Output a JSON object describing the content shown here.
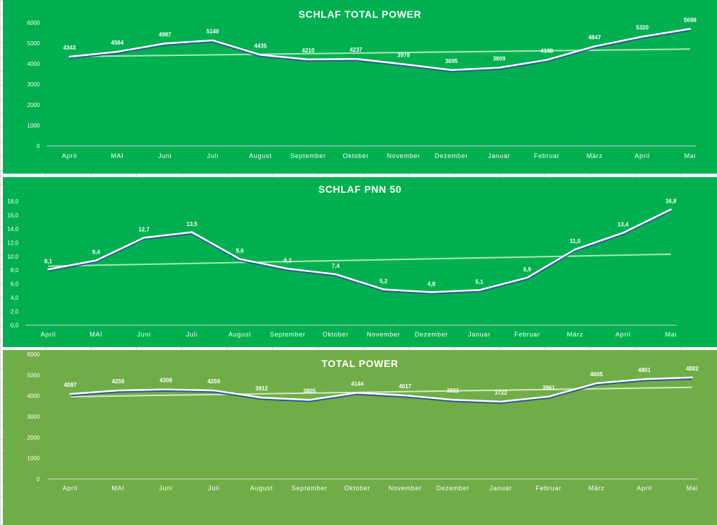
{
  "colors": {
    "chart1_bg": "#00b050",
    "chart2_bg": "#00b050",
    "chart3_bg": "#70ad47",
    "line": "#ffffff",
    "line_shadow": "#2f5597",
    "trend1": "#a9e8b8",
    "trend2": "#a9e8b8",
    "trend3": "#d6e9c6",
    "baseline": "#d9d9d9"
  },
  "chart_data": [
    {
      "type": "line",
      "title": "SCHLAF TOTAL POWER",
      "categories": [
        "April",
        "MAI",
        "Juni",
        "Juli",
        "August",
        "September",
        "Oktober",
        "November",
        "Dezember",
        "Januar",
        "Februar",
        "März",
        "April",
        "Mai"
      ],
      "values": [
        4343,
        4584,
        4987,
        5140,
        4435,
        4210,
        4237,
        3978,
        3695,
        3809,
        4188,
        4847,
        5320,
        5698
      ],
      "value_labels": [
        "4343",
        "4584",
        "4987",
        "5140",
        "4435",
        "4210",
        "4237",
        "3978",
        "3695",
        "3809",
        "4188",
        "4847",
        "5320",
        "5698"
      ],
      "ylim": [
        0,
        6000
      ],
      "yticks": [
        0,
        1000,
        2000,
        3000,
        4000,
        5000,
        6000
      ],
      "ytick_labels": [
        "0",
        "1000",
        "2000",
        "3000",
        "4000",
        "5000",
        "6000"
      ],
      "trendline": true,
      "grid": false,
      "legend": "none"
    },
    {
      "type": "line",
      "title": "SCHLAF PNN 50",
      "categories": [
        "April",
        "MAI",
        "Juni",
        "Juli",
        "August",
        "September",
        "Oktober",
        "November",
        "Dezember",
        "Januar",
        "Februar",
        "März",
        "April",
        "Mai"
      ],
      "values": [
        8.1,
        9.4,
        12.7,
        13.5,
        9.6,
        8.2,
        7.4,
        5.2,
        4.8,
        5.1,
        6.9,
        11.0,
        13.4,
        16.8
      ],
      "value_labels": [
        "8,1",
        "9,4",
        "12,7",
        "13,5",
        "9,6",
        "8,2",
        "7,4",
        "5,2",
        "4,8",
        "5,1",
        "6,9",
        "11,0",
        "13,4",
        "16,8"
      ],
      "ylim": [
        0,
        18
      ],
      "yticks": [
        0,
        2,
        4,
        6,
        8,
        10,
        12,
        14,
        16,
        18
      ],
      "ytick_labels": [
        "0,0",
        "2,0",
        "4,0",
        "6,0",
        "8,0",
        "10,0",
        "12,0",
        "14,0",
        "16,0",
        "18,0"
      ],
      "trendline": true,
      "grid": false,
      "legend": "none"
    },
    {
      "type": "line",
      "title": "TOTAL POWER",
      "categories": [
        "April",
        "MAI",
        "Juni",
        "Juli",
        "August",
        "September",
        "Oktober",
        "November",
        "Dezember",
        "Januar",
        "Februar",
        "März",
        "April",
        "Mai"
      ],
      "values": [
        4087,
        4259,
        4308,
        4259,
        3912,
        3805,
        4144,
        4017,
        3811,
        3722,
        3961,
        4605,
        4801,
        4882
      ],
      "value_labels": [
        "4087",
        "4259",
        "4308",
        "4259",
        "3912",
        "3805",
        "4144",
        "4017",
        "3811",
        "3722",
        "3961",
        "4605",
        "4801",
        "4882"
      ],
      "ylim": [
        0,
        6000
      ],
      "yticks": [
        0,
        1000,
        2000,
        3000,
        4000,
        5000,
        6000
      ],
      "ytick_labels": [
        "0",
        "1000",
        "2000",
        "3000",
        "4000",
        "5000",
        "6000"
      ],
      "trendline": true,
      "grid": false,
      "legend": "none"
    }
  ]
}
